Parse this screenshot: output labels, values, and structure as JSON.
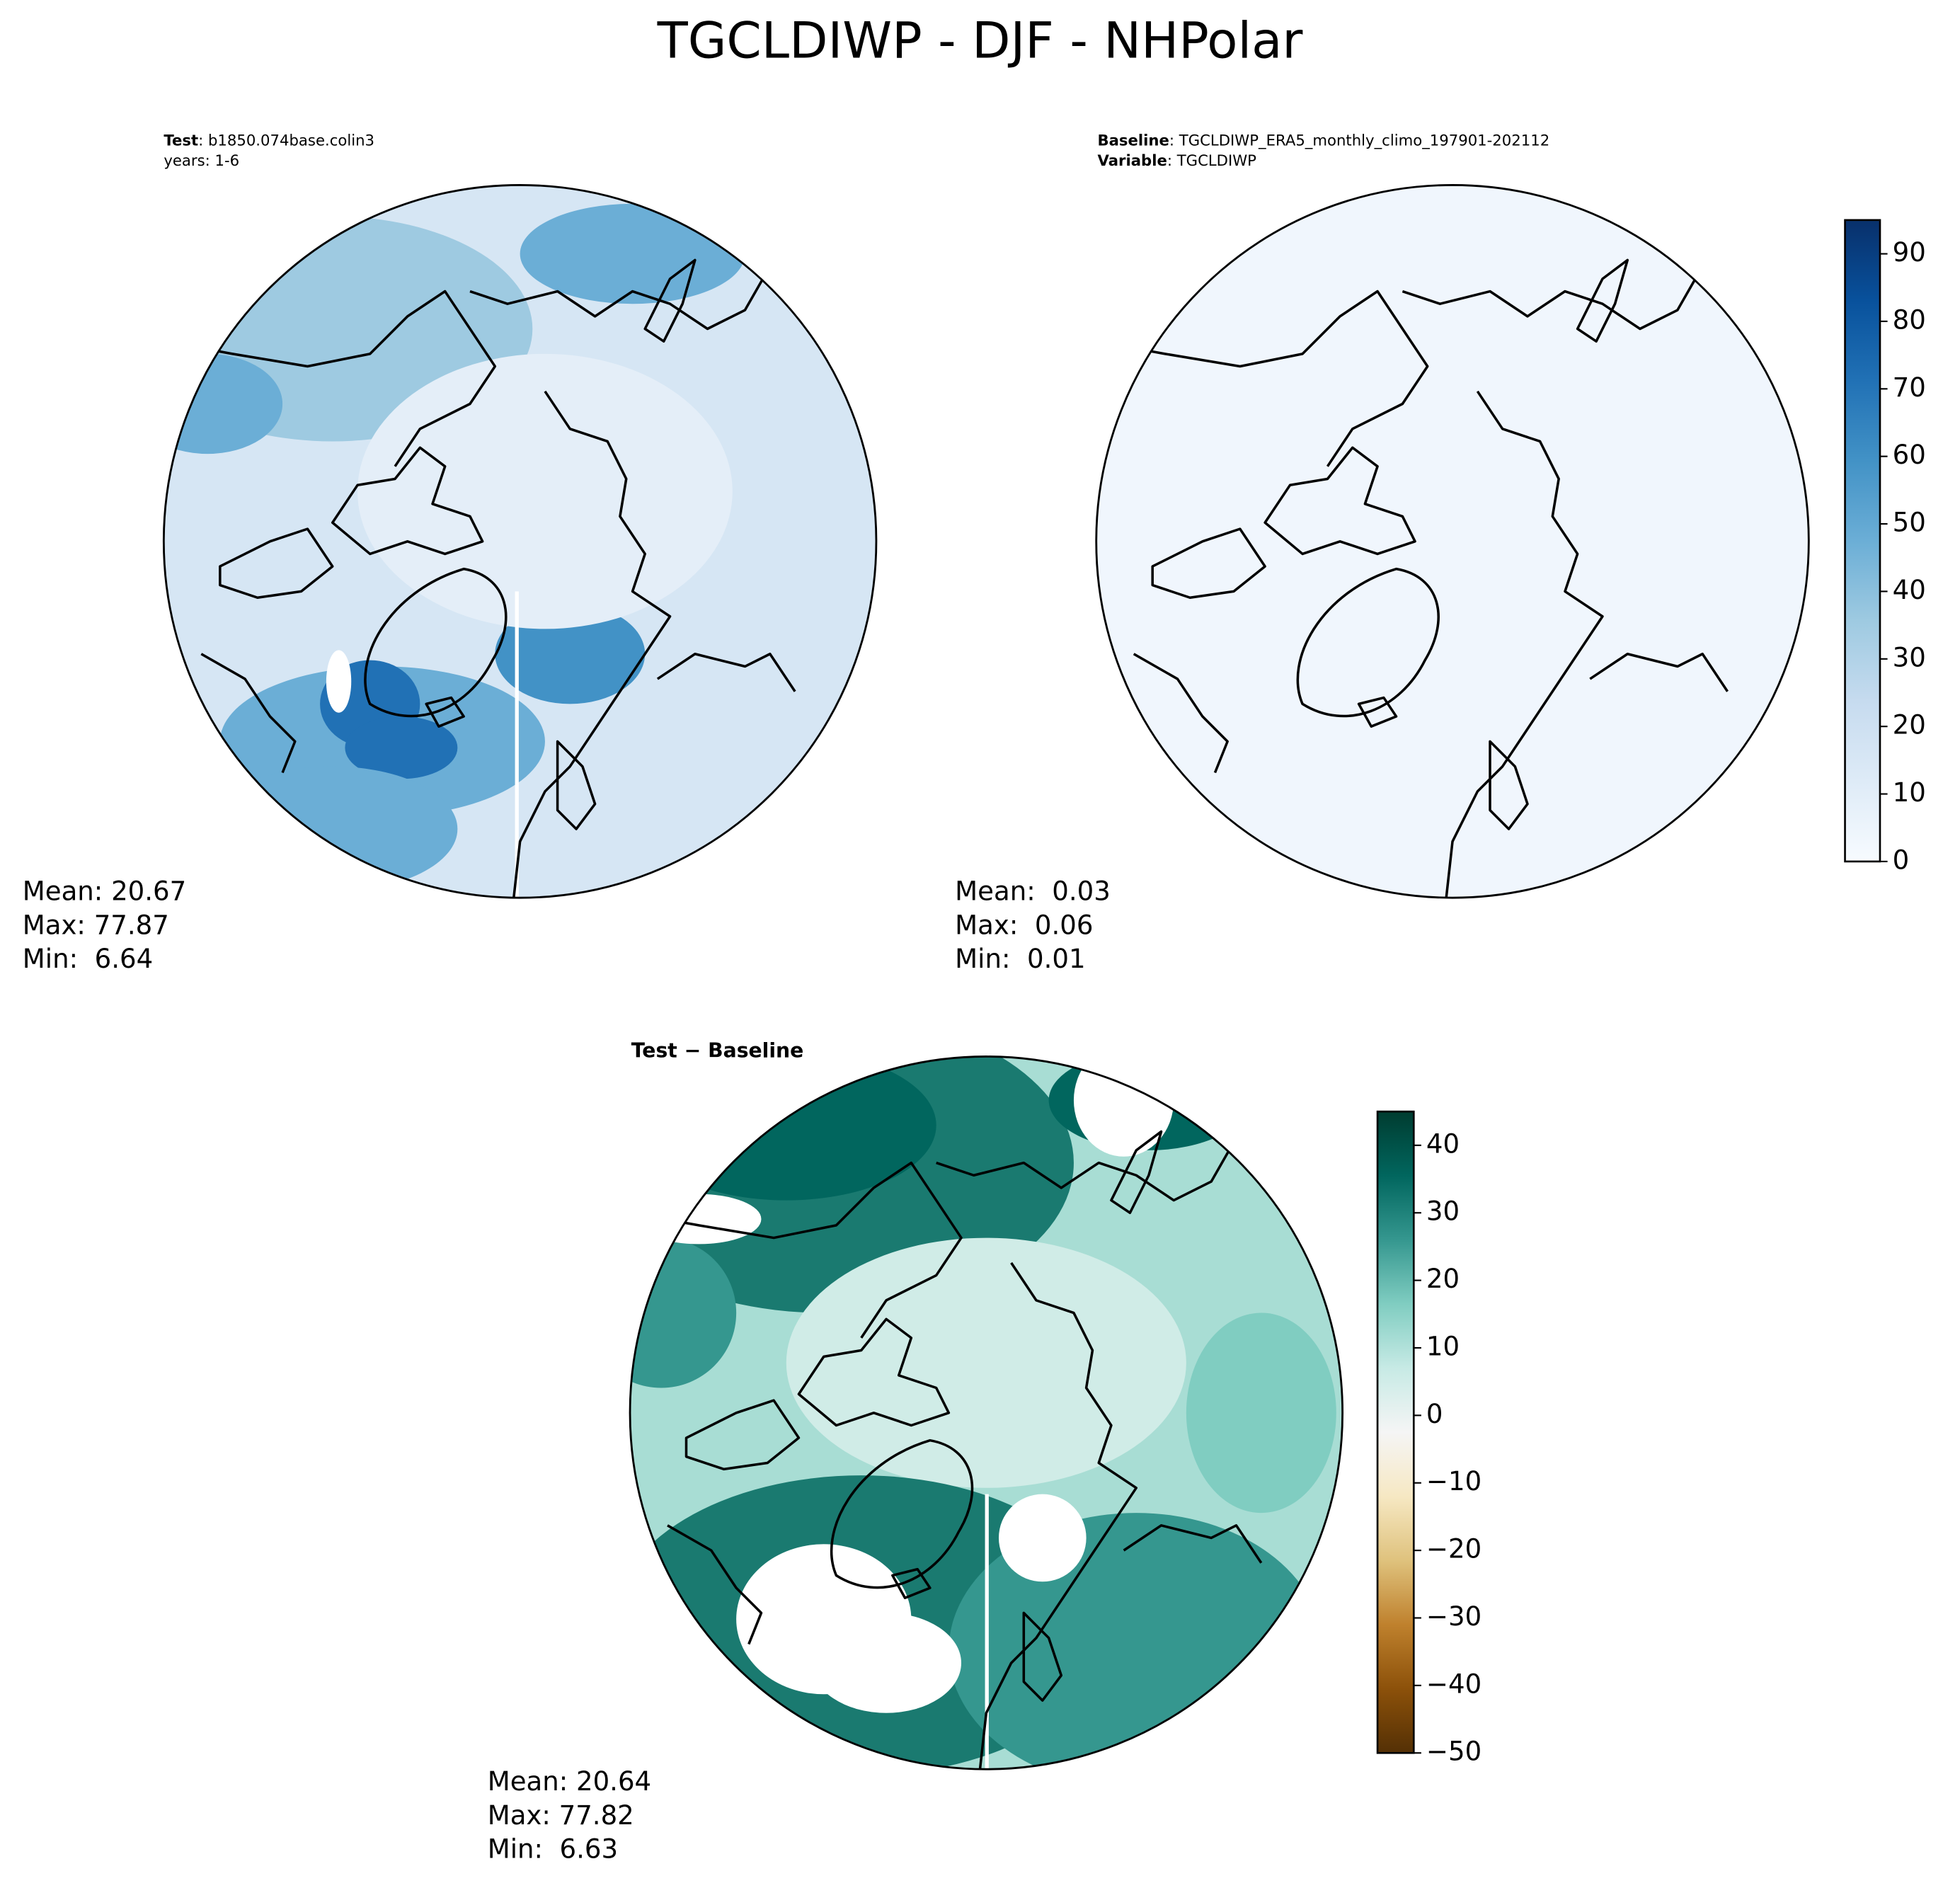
{
  "title": "TGCLDIWP - DJF - NHPolar",
  "chart_data": [
    {
      "type": "map",
      "annotation": [
        {
          "key": "Test",
          "text": ": b1850.074base.colin3"
        },
        {
          "text": "years: 1-6"
        }
      ],
      "stats": [
        "Mean: 20.67",
        "Max: 77.87",
        "Min:  6.64"
      ]
    },
    {
      "type": "map",
      "annotation": [
        {
          "key": "Baseline",
          "text": ": TGCLDIWP_ERA5_monthly_climo_197901-202112"
        },
        {
          "key": "Variable",
          "text": ": TGCLDIWP"
        }
      ],
      "stats": [
        "Mean:  0.03",
        "Max:  0.06",
        "Min:  0.01"
      ],
      "colorbar": {
        "clim": [
          0,
          95
        ],
        "ticks": [
          0,
          10,
          20,
          30,
          40,
          50,
          60,
          70,
          80,
          90
        ],
        "colors": [
          "#f7fbff",
          "#deebf7",
          "#c6dbef",
          "#9ecae1",
          "#6baed6",
          "#4292c6",
          "#2171b5",
          "#08519c",
          "#08306b"
        ]
      }
    },
    {
      "type": "map",
      "annotation": [
        {
          "key": "Test − Baseline"
        }
      ],
      "stats": [
        "Mean: 20.64",
        "Max: 77.82",
        "Min:  6.63"
      ],
      "colorbar": {
        "clim": [
          -50,
          45
        ],
        "ticks": [
          {
            "value": -50,
            "label": "−50"
          },
          {
            "value": -40,
            "label": "−40"
          },
          {
            "value": -30,
            "label": "−30"
          },
          {
            "value": -20,
            "label": "−20"
          },
          {
            "value": -10,
            "label": "−10"
          },
          0,
          10,
          20,
          30,
          40
        ],
        "colors": [
          "#543005",
          "#8c510a",
          "#bf812d",
          "#dfc27d",
          "#f6e8c3",
          "#f5f5f5",
          "#c7eae5",
          "#80cdc1",
          "#35978f",
          "#01665e",
          "#003c30"
        ]
      }
    }
  ]
}
